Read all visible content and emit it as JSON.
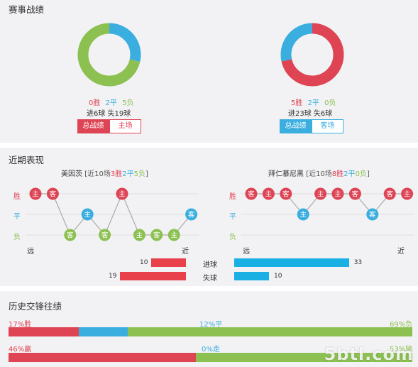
{
  "colors": {
    "win": "#de4454",
    "draw": "#3aaedf",
    "loss": "#8cc152",
    "gray": "#dddddd"
  },
  "record": {
    "title": "赛事战绩",
    "home": {
      "win": "0胜",
      "draw": "2平",
      "loss": "5负",
      "goals": "进6球 失19球",
      "win_n": 0,
      "draw_n": 2,
      "loss_n": 5,
      "tab_active": "总战绩",
      "tab_other": "主场"
    },
    "away": {
      "win": "5胜",
      "draw": "2平",
      "loss": "0负",
      "goals": "进23球 失6球",
      "win_n": 5,
      "draw_n": 2,
      "loss_n": 0,
      "tab_active": "总战绩",
      "tab_other": "客场"
    }
  },
  "recent": {
    "title": "近期表现",
    "axis": {
      "win": "胜",
      "draw": "平",
      "loss": "负",
      "far": "远",
      "near": "近"
    },
    "home": {
      "team": "美因茨",
      "prefix": "[近10场",
      "w": "3胜",
      "d": "2平",
      "l": "5负",
      "suffix": "]",
      "games": [
        {
          "r": "W",
          "v": "主"
        },
        {
          "r": "W",
          "v": "客"
        },
        {
          "r": "L",
          "v": "客"
        },
        {
          "r": "D",
          "v": "主"
        },
        {
          "r": "L",
          "v": "客"
        },
        {
          "r": "W",
          "v": "主"
        },
        {
          "r": "L",
          "v": "主"
        },
        {
          "r": "L",
          "v": "客"
        },
        {
          "r": "L",
          "v": "主"
        },
        {
          "r": "D",
          "v": "客"
        }
      ]
    },
    "away": {
      "team": "拜仁慕尼黑",
      "prefix": "[近10场",
      "w": "8胜",
      "d": "2平",
      "l": "0负",
      "suffix": "]",
      "games": [
        {
          "r": "W",
          "v": "客"
        },
        {
          "r": "W",
          "v": "主"
        },
        {
          "r": "W",
          "v": "客"
        },
        {
          "r": "D",
          "v": "主"
        },
        {
          "r": "W",
          "v": "主"
        },
        {
          "r": "W",
          "v": "主"
        },
        {
          "r": "W",
          "v": "客"
        },
        {
          "r": "D",
          "v": "客"
        },
        {
          "r": "W",
          "v": "客"
        },
        {
          "r": "W",
          "v": "主"
        }
      ]
    },
    "goals_for_label": "进球",
    "goals_against_label": "失球",
    "home_goals_for": 10,
    "home_goals_against": 19,
    "away_goals_for": 33,
    "away_goals_against": 10
  },
  "history": {
    "title": "历史交锋往绩",
    "row1": {
      "left": "17%胜",
      "mid": "12%平",
      "right": "69%负",
      "a": 17,
      "b": 12,
      "c": 69
    },
    "row2": {
      "left": "46%赢",
      "mid": "0%走",
      "right": "53%输",
      "a": 46,
      "b": 0,
      "c": 53
    }
  },
  "watermark": "5btl.com"
}
